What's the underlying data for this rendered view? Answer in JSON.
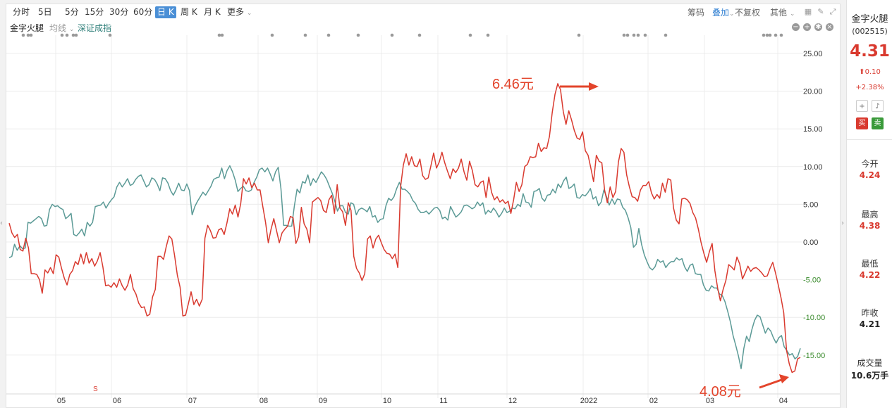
{
  "toolbar": {
    "tabs": [
      "分时",
      "5日",
      "5分",
      "15分",
      "30分",
      "60分",
      "日 K",
      "周 K",
      "月 K",
      "更多"
    ],
    "active_tab": "日 K",
    "chip": "筹码",
    "overlay": "叠加",
    "adjust": "不复权",
    "other": "其他"
  },
  "subbar": {
    "stock": "金字火腿",
    "ma": "均线",
    "index": "深证成指"
  },
  "annotations": {
    "high": "6.46元",
    "low": "4.08元",
    "marker": "S"
  },
  "sidebar": {
    "name": "金字火腿",
    "code": "(002515)",
    "price": "4.31",
    "change": "0.10",
    "change_pct": "+2.38%",
    "buy": "买",
    "sell": "卖",
    "stats": [
      {
        "label": "今开",
        "value": "4.24"
      },
      {
        "label": "最高",
        "value": "4.38"
      },
      {
        "label": "最低",
        "value": "4.22"
      },
      {
        "label": "昨收",
        "value": "4.21"
      },
      {
        "label": "成交量",
        "value": "10.6万手"
      }
    ]
  },
  "colors": {
    "stock_line": "#d93a2f",
    "index_line": "#5b9a96",
    "up": "#d93a2f",
    "neg_axis": "#3c8c2f",
    "active_tab": "#4a8fd6"
  },
  "chart_data": {
    "type": "line",
    "unit": "percent change",
    "ylim": [
      -19,
      28
    ],
    "yticks": [
      25,
      20,
      15,
      10,
      5,
      0,
      -5,
      -10,
      -15
    ],
    "ytick_labels": [
      "25.00",
      "20.00",
      "15.00",
      "10.00",
      "5.00",
      "0.00",
      "-5.00",
      "-10.00",
      "-15.00"
    ],
    "x_labels": [
      "05",
      "06",
      "07",
      "08",
      "09",
      "10",
      "11",
      "12",
      "2022",
      "02",
      "03",
      "04"
    ],
    "series": [
      {
        "key": "stock",
        "values": [
          2.5,
          1.2,
          0.6,
          1.0,
          -1.0,
          -1.2,
          0.5,
          -0.8,
          -4.2,
          -4.2,
          -4.3,
          -5.0,
          -6.8,
          -3.7,
          -4.1,
          -3.4,
          -4.2,
          -1.7,
          -2.0,
          -3.5,
          -4.8,
          -5.7,
          -4.3,
          -3.8,
          -2.6,
          -3.0,
          -1.6,
          -2.9,
          -1.4,
          -2.8,
          -2.2,
          -3.2,
          -2.5,
          -1.4,
          -3.3,
          -5.8,
          -5.7,
          -6.0,
          -5.4,
          -6.0,
          -4.9,
          -5.8,
          -6.4,
          -5.7,
          -4.3,
          -6.2,
          -6.9,
          -8.1,
          -8.7,
          -8.6,
          -9.8,
          -9.6,
          -7.3,
          -6.3,
          -1.9,
          -1.9,
          -2.3,
          -0.6,
          0.8,
          0.4,
          -1.8,
          -4.4,
          -6.0,
          -9.8,
          -9.7,
          -8.2,
          -6.6,
          -8.3,
          -7.6,
          -8.5,
          -7.6,
          0.5,
          2.2,
          1.5,
          0.5,
          0.6,
          1.6,
          1.8,
          1.0,
          2.5,
          4.4,
          3.7,
          4.9,
          3.3,
          5.1,
          8.4,
          7.7,
          8.5,
          7.2,
          7.8,
          6.9,
          6.9,
          4.7,
          2.6,
          -0.1,
          1.7,
          3.1,
          1.5,
          -0.1,
          1.2,
          1.7,
          2.1,
          3.4,
          3.2,
          -0.2,
          0.7,
          4.6,
          2.4,
          1.7,
          -0.1,
          5.3,
          5.6,
          5.9,
          5.5,
          4.2,
          3.9,
          5.6,
          6.2,
          3.8,
          7.6,
          4.5,
          4.0,
          2.2,
          5.2,
          4.2,
          -1.9,
          -3.5,
          -4.1,
          -5.1,
          -4.2,
          0.4,
          0.8,
          -0.8,
          0.4,
          0.9,
          -0.1,
          -1.0,
          -1.5,
          -1.6,
          -2.2,
          -1.6,
          -3.4,
          7.3,
          10.2,
          11.7,
          10.2,
          11.3,
          10.1,
          10.0,
          11.0,
          8.8,
          8.3,
          8.5,
          10.1,
          11.8,
          9.8,
          10.6,
          11.9,
          10.5,
          9.4,
          8.4,
          9.7,
          9.2,
          9.8,
          11.0,
          9.3,
          8.2,
          10.7,
          9.5,
          7.6,
          7.3,
          7.9,
          8.1,
          5.9,
          8.6,
          6.6,
          5.6,
          6.0,
          5.3,
          5.6,
          5.1,
          5.4,
          3.8,
          5.6,
          7.9,
          6.7,
          7.6,
          10.0,
          10.3,
          11.3,
          11.2,
          11.3,
          13.1,
          12.0,
          12.5,
          12.4,
          14.0,
          17.2,
          19.6,
          21.0,
          20.2,
          17.3,
          15.6,
          17.4,
          16.2,
          14.8,
          13.8,
          13.6,
          14.6,
          12.1,
          11.5,
          9.8,
          8.0,
          11.5,
          10.7,
          10.5,
          6.9,
          5.2,
          7.3,
          5.9,
          6.7,
          10.6,
          12.4,
          11.9,
          8.9,
          7.3,
          6.0,
          5.9,
          5.4,
          6.9,
          7.5,
          7.5,
          8.0,
          6.5,
          5.7,
          6.3,
          5.8,
          7.8,
          6.6,
          8.4,
          8.2,
          4.5,
          2.9,
          2.4,
          5.7,
          5.8,
          5.6,
          5.1,
          3.9,
          3.2,
          1.7,
          -0.1,
          -1.5,
          -2.7,
          -1.3,
          -0.2,
          -3.8,
          -6.1,
          -7.8,
          -6.3,
          -5.1,
          -3.0,
          -3.3,
          -3.7,
          -2.0,
          -2.9,
          -4.9,
          -4.1,
          -3.2,
          -3.9,
          -3.5,
          -3.4,
          -3.7,
          -4.1,
          -4.6,
          -4.5,
          -3.5,
          -2.7,
          -4.1,
          -5.7,
          -7.4,
          -9.4,
          -14.4,
          -16.2,
          -17.3,
          -17.1,
          -15.5,
          -15.3
        ],
        "color": "#d93a2f"
      },
      {
        "key": "index",
        "values": [
          -2.1,
          -1.9,
          -0.3,
          -1.1,
          -0.5,
          -0.9,
          -0.8,
          2.6,
          2.5,
          2.8,
          3.1,
          3.4,
          3.1,
          2.1,
          2.2,
          4.3,
          5.0,
          4.7,
          4.8,
          4.5,
          4.3,
          3.1,
          3.4,
          3.8,
          1.0,
          0.8,
          1.2,
          1.7,
          0.8,
          2.6,
          2.1,
          2.6,
          4.7,
          4.8,
          4.9,
          5.3,
          4.5,
          5.1,
          5.6,
          6.0,
          7.3,
          7.9,
          7.3,
          7.8,
          8.4,
          7.5,
          7.7,
          8.3,
          8.7,
          8.9,
          8.1,
          7.3,
          7.6,
          8.5,
          8.3,
          7.7,
          6.8,
          8.5,
          8.4,
          7.8,
          6.8,
          6.2,
          6.9,
          7.8,
          6.9,
          6.8,
          7.7,
          6.8,
          3.6,
          4.7,
          5.4,
          6.0,
          6.6,
          6.2,
          6.8,
          7.4,
          8.3,
          8.5,
          8.6,
          9.8,
          8.4,
          9.5,
          10.1,
          9.3,
          8.2,
          6.7,
          7.1,
          7.4,
          6.8,
          6.7,
          6.9,
          7.9,
          8.6,
          9.6,
          9.8,
          9.3,
          9.8,
          9.0,
          8.1,
          9.3,
          9.9,
          7.1,
          2.2,
          2.2,
          2.1,
          2.1,
          4.8,
          7.0,
          6.5,
          8.0,
          7.8,
          8.9,
          7.5,
          8.4,
          7.9,
          8.6,
          9.3,
          8.9,
          8.3,
          7.4,
          6.5,
          5.4,
          4.1,
          4.8,
          4.8,
          3.9,
          3.7,
          5.2,
          5.0,
          3.6,
          4.3,
          4.5,
          4.3,
          4.0,
          4.7,
          3.3,
          3.5,
          2.6,
          3.0,
          3.1,
          4.8,
          5.8,
          5.5,
          6.0,
          7.1,
          7.9,
          7.0,
          7.0,
          6.7,
          6.3,
          5.5,
          5.1,
          4.3,
          3.9,
          3.9,
          4.1,
          3.7,
          4.1,
          4.5,
          4.6,
          4.2,
          3.1,
          3.3,
          2.9,
          4.7,
          4.0,
          3.3,
          3.6,
          4.0,
          4.8,
          4.9,
          4.7,
          4.4,
          4.6,
          5.3,
          4.8,
          5.2,
          3.7,
          4.2,
          3.9,
          4.5,
          4.0,
          3.3,
          3.8,
          4.5,
          3.9,
          4.1,
          4.5,
          4.4,
          5.0,
          4.7,
          6.4,
          5.3,
          5.2,
          4.6,
          6.7,
          6.8,
          7.1,
          5.8,
          5.4,
          6.2,
          6.3,
          7.0,
          6.5,
          7.7,
          7.2,
          8.1,
          8.6,
          7.1,
          7.3,
          7.7,
          5.9,
          5.8,
          6.3,
          6.1,
          6.5,
          7.1,
          5.7,
          6.0,
          4.8,
          5.3,
          6.9,
          6.0,
          4.9,
          5.7,
          5.0,
          5.7,
          5.6,
          4.6,
          4.2,
          3.2,
          1.9,
          -0.7,
          -0.3,
          1.8,
          -0.3,
          -1.7,
          -2.6,
          -3.4,
          -3.7,
          -3.3,
          -2.3,
          -2.7,
          -2.5,
          -3.4,
          -2.9,
          -2.6,
          -2.6,
          -2.1,
          -2.4,
          -2.2,
          -3.3,
          -3.9,
          -3.1,
          -2.9,
          -4.2,
          -4.3,
          -4.3,
          -5.7,
          -6.4,
          -6.5,
          -5.8,
          -6.1,
          -6.1,
          -6.9,
          -7.1,
          -7.9,
          -9.2,
          -10.6,
          -12.4,
          -13.7,
          -15.1,
          -16.8,
          -14.1,
          -12.5,
          -13.2,
          -11.6,
          -10.4,
          -9.7,
          -9.9,
          -11.0,
          -12.1,
          -11.4,
          -11.8,
          -12.7,
          -13.4,
          -12.7,
          -12.4,
          -13.9,
          -14.4,
          -15.0,
          -14.8,
          -15.5,
          -15.2,
          -14.1
        ]
      }
    ]
  }
}
